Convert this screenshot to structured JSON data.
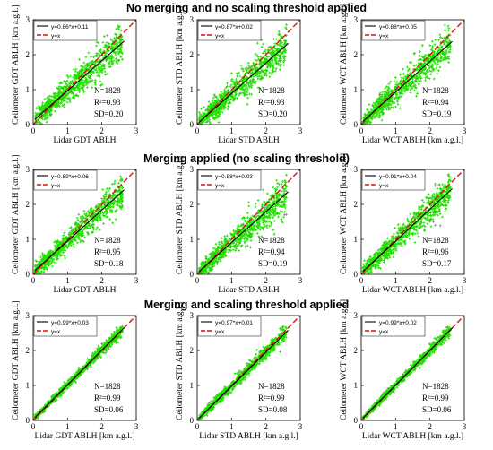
{
  "row_titles": [
    "No merging and no scaling threshold applied",
    "Merging applied (no scaling threshold)",
    "Merging and scaling threshold applied"
  ],
  "colors": {
    "points": "#22dd00",
    "fit": "#000000",
    "identity": "#dd1111"
  },
  "chart_data": [
    {
      "type": "scatter",
      "row": 0,
      "col": 0,
      "fit_label": "y=0.86*x+0.11",
      "identity_label": "y=x",
      "n_label": "N=1828",
      "r2_label": "R²=0.93",
      "sd_label": "SD=0.20",
      "slope": 0.86,
      "intercept": 0.11,
      "r2": 0.93,
      "sd": 0.2,
      "n": 1828,
      "xlabel": "Lidar GDT ABLH",
      "ylabel": "Ceilometer GDT ABLH [km a.g.l.]",
      "xlim": [
        0,
        3
      ],
      "ylim": [
        0,
        3
      ],
      "xticks": [
        0,
        1,
        2,
        3
      ],
      "yticks": [
        0,
        1,
        2,
        3
      ]
    },
    {
      "type": "scatter",
      "row": 0,
      "col": 1,
      "fit_label": "y=0.87*x+0.02",
      "identity_label": "y=x",
      "n_label": "N=1828",
      "r2_label": "R²=0.93",
      "sd_label": "SD=0.20",
      "slope": 0.87,
      "intercept": 0.02,
      "r2": 0.93,
      "sd": 0.2,
      "n": 1828,
      "xlabel": "Lidar STD ABLH",
      "ylabel": "Ceilometer STD ABLH [km a.g.l.]",
      "xlim": [
        0,
        3
      ],
      "ylim": [
        0,
        3
      ],
      "xticks": [
        0,
        1,
        2,
        3
      ],
      "yticks": [
        0,
        1,
        2,
        3
      ]
    },
    {
      "type": "scatter",
      "row": 0,
      "col": 2,
      "fit_label": "y=0.88*x+0.05",
      "identity_label": "y=x",
      "n_label": "N=1828",
      "r2_label": "R²=0.94",
      "sd_label": "SD=0.19",
      "slope": 0.88,
      "intercept": 0.05,
      "r2": 0.94,
      "sd": 0.19,
      "n": 1828,
      "xlabel": "Lidar WCT ABLH [km a.g.l.]",
      "ylabel": "Ceilometer WCT ABLH [km a.g.l.]",
      "xlim": [
        0,
        3
      ],
      "ylim": [
        0,
        3
      ],
      "xticks": [
        0,
        1,
        2,
        3
      ],
      "yticks": [
        0,
        1,
        2,
        3
      ]
    },
    {
      "type": "scatter",
      "row": 1,
      "col": 0,
      "fit_label": "y=0.89*x+0.06",
      "identity_label": "y=x",
      "n_label": "N=1828",
      "r2_label": "R²=0.95",
      "sd_label": "SD=0.18",
      "slope": 0.89,
      "intercept": 0.06,
      "r2": 0.95,
      "sd": 0.18,
      "n": 1828,
      "xlabel": "Lidar GDT ABLH",
      "ylabel": "Ceilometer GDT ABLH [km a.g.l.]",
      "xlim": [
        0,
        3
      ],
      "ylim": [
        0,
        3
      ],
      "xticks": [
        0,
        1,
        2,
        3
      ],
      "yticks": [
        0,
        1,
        2,
        3
      ]
    },
    {
      "type": "scatter",
      "row": 1,
      "col": 1,
      "fit_label": "y=0.88*x+0.03",
      "identity_label": "y=x",
      "n_label": "N=1828",
      "r2_label": "R²=0.94",
      "sd_label": "SD=0.19",
      "slope": 0.88,
      "intercept": 0.03,
      "r2": 0.94,
      "sd": 0.19,
      "n": 1828,
      "xlabel": "Lidar STD ABLH",
      "ylabel": "Ceilometer STD ABLH [km a.g.l.]",
      "xlim": [
        0,
        3
      ],
      "ylim": [
        0,
        3
      ],
      "xticks": [
        0,
        1,
        2,
        3
      ],
      "yticks": [
        0,
        1,
        2,
        3
      ]
    },
    {
      "type": "scatter",
      "row": 1,
      "col": 2,
      "fit_label": "y=0.91*x+0.04",
      "identity_label": "y=x",
      "n_label": "N=1828",
      "r2_label": "R²=0.96",
      "sd_label": "SD=0.17",
      "slope": 0.91,
      "intercept": 0.04,
      "r2": 0.96,
      "sd": 0.17,
      "n": 1828,
      "xlabel": "Lidar WCT ABLH [km a.g.l.]",
      "ylabel": "Ceilometer WCT ABLH [km a.g.l.]",
      "xlim": [
        0,
        3
      ],
      "ylim": [
        0,
        3
      ],
      "xticks": [
        0,
        1,
        2,
        3
      ],
      "yticks": [
        0,
        1,
        2,
        3
      ]
    },
    {
      "type": "scatter",
      "row": 2,
      "col": 0,
      "fit_label": "y=0.99*x+0.03",
      "identity_label": "y=x",
      "n_label": "N=1828",
      "r2_label": "R²=0.99",
      "sd_label": "SD=0.06",
      "slope": 0.99,
      "intercept": 0.03,
      "r2": 0.99,
      "sd": 0.06,
      "n": 1828,
      "xlabel": "Lidar GDT ABLH [km a.g.l.]",
      "ylabel": "Ceilometer GDT ABLH [km a.g.l.]",
      "xlim": [
        0,
        3
      ],
      "ylim": [
        0,
        3
      ],
      "xticks": [
        0,
        1,
        2,
        3
      ],
      "yticks": [
        0,
        1,
        2,
        3
      ]
    },
    {
      "type": "scatter",
      "row": 2,
      "col": 1,
      "fit_label": "y=0.97*x+0.01",
      "identity_label": "y=x",
      "n_label": "N=1828",
      "r2_label": "R²=0.99",
      "sd_label": "SD=0.08",
      "slope": 0.97,
      "intercept": 0.01,
      "r2": 0.99,
      "sd": 0.08,
      "n": 1828,
      "xlabel": "Lidar STD ABLH [km a.g.l.]",
      "ylabel": "Ceilometer STD ABLH [km a.g.l.]",
      "xlim": [
        0,
        3
      ],
      "ylim": [
        0,
        3
      ],
      "xticks": [
        0,
        1,
        2,
        3
      ],
      "yticks": [
        0,
        1,
        2,
        3
      ]
    },
    {
      "type": "scatter",
      "row": 2,
      "col": 2,
      "fit_label": "y=0.99*x+0.02",
      "identity_label": "y=x",
      "n_label": "N=1828",
      "r2_label": "R²=0.99",
      "sd_label": "SD=0.06",
      "slope": 0.99,
      "intercept": 0.02,
      "r2": 0.99,
      "sd": 0.06,
      "n": 1828,
      "xlabel": "Lidar WCT ABLH [km a.g.l.]",
      "ylabel": "Ceilometer WCT ABLH [km a.g.l.]",
      "xlim": [
        0,
        3
      ],
      "ylim": [
        0,
        3
      ],
      "xticks": [
        0,
        1,
        2,
        3
      ],
      "yticks": [
        0,
        1,
        2,
        3
      ]
    }
  ]
}
